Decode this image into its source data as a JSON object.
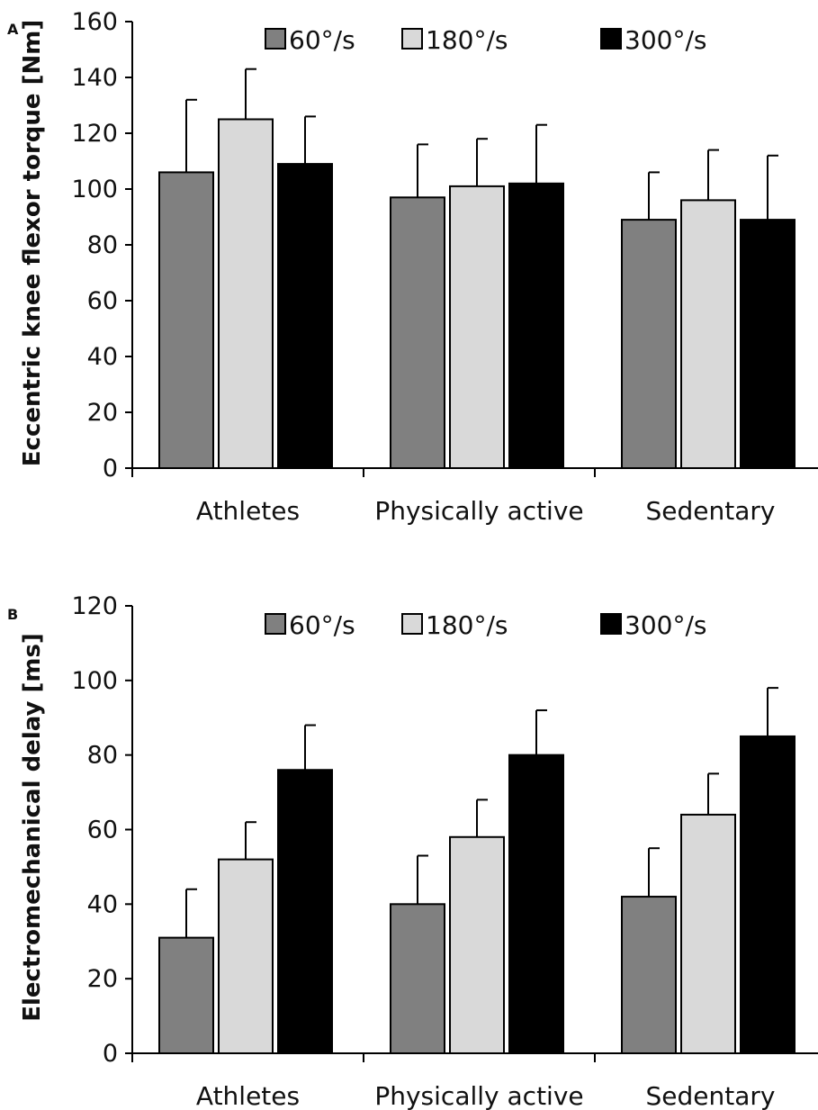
{
  "colors": {
    "series": [
      "#808080",
      "#d9d9d9",
      "#000000"
    ],
    "outline": "#000000",
    "axis": "#000000"
  },
  "chart_data": [
    {
      "type": "bar",
      "panel": "A",
      "categories": [
        "Athletes",
        "Physically active",
        "Sedentary"
      ],
      "series": [
        {
          "name": "60°/s",
          "values": [
            106,
            97,
            89
          ],
          "errors": [
            26,
            19,
            17
          ]
        },
        {
          "name": "180°/s",
          "values": [
            125,
            101,
            96
          ],
          "errors": [
            18,
            17,
            18
          ]
        },
        {
          "name": "300°/s",
          "values": [
            109,
            102,
            89
          ],
          "errors": [
            17,
            21,
            23
          ]
        }
      ],
      "ylabel": "Eccentric knee flexor torque [Nm]",
      "ylim": [
        0,
        160
      ],
      "yticks": [
        0,
        20,
        40,
        60,
        80,
        100,
        120,
        140,
        160
      ],
      "legend": "top",
      "grid": false
    },
    {
      "type": "bar",
      "panel": "B",
      "categories": [
        "Athletes",
        "Physically active",
        "Sedentary"
      ],
      "series": [
        {
          "name": "60°/s",
          "values": [
            31,
            40,
            42
          ],
          "errors": [
            13,
            13,
            13
          ]
        },
        {
          "name": "180°/s",
          "values": [
            52,
            58,
            64
          ],
          "errors": [
            10,
            10,
            11
          ]
        },
        {
          "name": "300°/s",
          "values": [
            76,
            80,
            85
          ],
          "errors": [
            12,
            12,
            13
          ]
        }
      ],
      "ylabel": "Electromechanical delay [ms]",
      "ylim": [
        0,
        120
      ],
      "yticks": [
        0,
        20,
        40,
        60,
        80,
        100,
        120
      ],
      "legend": "top",
      "grid": false
    }
  ]
}
